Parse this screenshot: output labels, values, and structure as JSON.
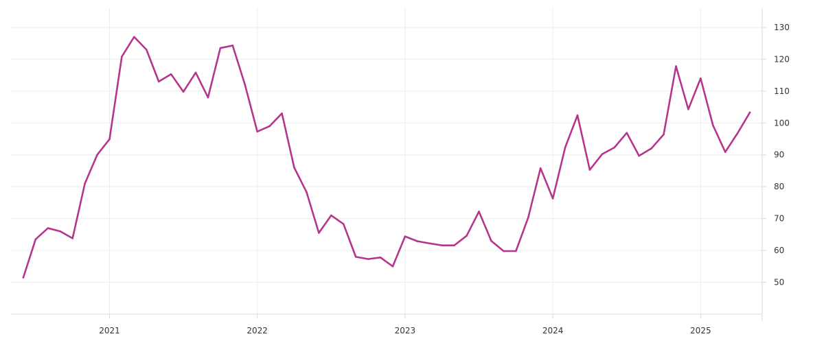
{
  "chart_data": {
    "type": "line",
    "title": "",
    "xlabel": "",
    "ylabel": "",
    "colors": {
      "line": "#b5358c"
    },
    "grid": true,
    "legend": "none",
    "y_axis_position": "right",
    "ylim": [
      40,
      136
    ],
    "y_ticks": [
      50,
      60,
      70,
      80,
      90,
      100,
      110,
      120,
      130
    ],
    "x_range": [
      "2020-05-01",
      "2025-06-01"
    ],
    "x_ticks": [
      {
        "date": "2021-01-01",
        "label": "2021"
      },
      {
        "date": "2022-01-01",
        "label": "2022"
      },
      {
        "date": "2023-01-01",
        "label": "2023"
      },
      {
        "date": "2024-01-01",
        "label": "2024"
      },
      {
        "date": "2025-01-01",
        "label": "2025"
      }
    ],
    "series": [
      {
        "x": [
          "2020-06",
          "2020-07",
          "2020-08",
          "2020-09",
          "2020-10",
          "2020-11",
          "2020-12",
          "2021-01",
          "2021-02",
          "2021-03",
          "2021-04",
          "2021-05",
          "2021-06",
          "2021-07",
          "2021-08",
          "2021-09",
          "2021-10",
          "2021-11",
          "2021-12",
          "2022-01",
          "2022-02",
          "2022-03",
          "2022-04",
          "2022-05",
          "2022-06",
          "2022-07",
          "2022-08",
          "2022-09",
          "2022-10",
          "2022-11",
          "2022-12",
          "2023-01",
          "2023-02",
          "2023-03",
          "2023-04",
          "2023-05",
          "2023-06",
          "2023-07",
          "2023-08",
          "2023-09",
          "2023-10",
          "2023-11",
          "2023-12",
          "2024-01",
          "2024-02",
          "2024-03",
          "2024-04",
          "2024-05",
          "2024-06",
          "2024-07",
          "2024-08",
          "2024-09",
          "2024-10",
          "2024-11",
          "2024-12",
          "2025-01",
          "2025-02",
          "2025-03",
          "2025-04",
          "2025-05"
        ],
        "values": [
          51.5,
          63.5,
          67.0,
          66.0,
          63.8,
          81.0,
          90.0,
          94.9,
          120.8,
          127.0,
          123.0,
          113.0,
          115.3,
          109.8,
          115.8,
          108.0,
          123.5,
          124.3,
          112.0,
          97.3,
          99.0,
          103.0,
          86.0,
          78.3,
          65.5,
          71.0,
          68.3,
          58.0,
          57.3,
          57.8,
          55.0,
          64.4,
          62.9,
          62.2,
          61.6,
          61.6,
          64.6,
          72.2,
          63.0,
          59.8,
          59.8,
          70.3,
          85.8,
          76.3,
          92.3,
          102.4,
          85.3,
          90.2,
          92.3,
          96.9,
          89.7,
          92.0,
          96.4,
          117.8,
          104.3,
          114.0,
          99.3,
          90.9,
          96.8,
          103.3
        ]
      }
    ]
  }
}
